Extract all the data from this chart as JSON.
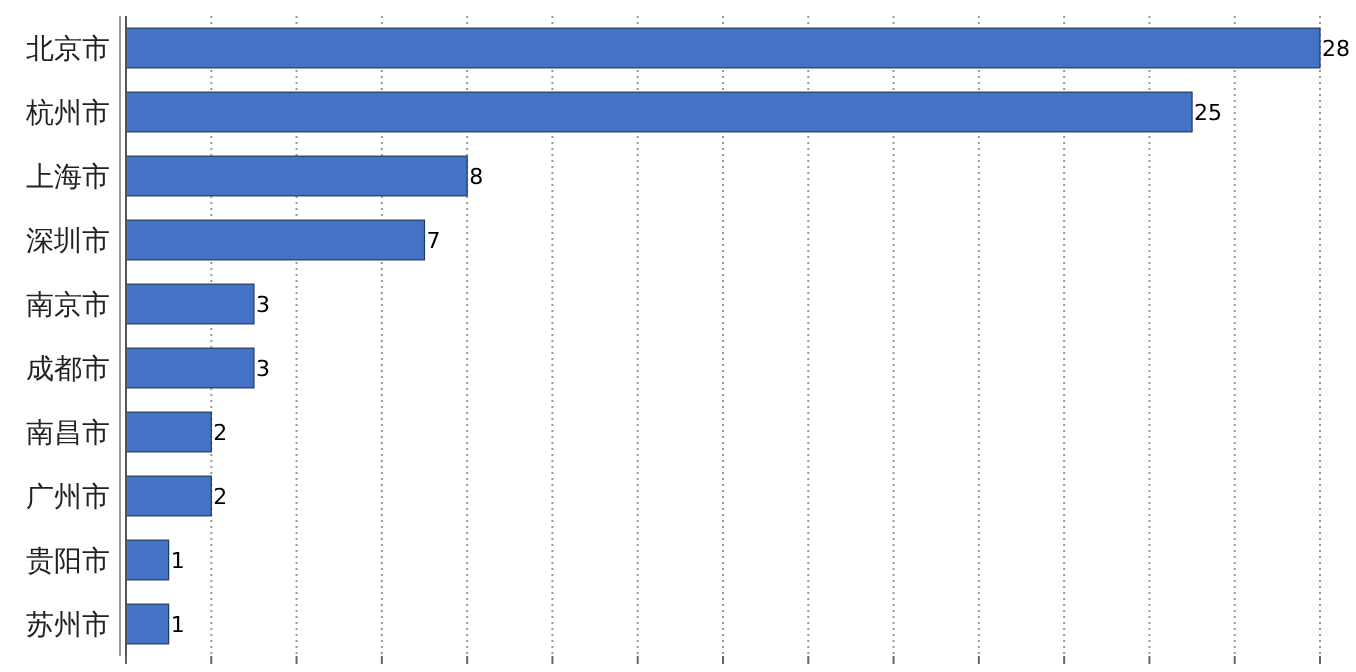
{
  "chart_data": {
    "type": "bar",
    "orientation": "horizontal",
    "categories": [
      "北京市",
      "杭州市",
      "上海市",
      "深圳市",
      "南京市",
      "成都市",
      "南昌市",
      "广州市",
      "贵阳市",
      "苏州市"
    ],
    "values": [
      28,
      25,
      8,
      7,
      3,
      3,
      2,
      2,
      1,
      1
    ],
    "color": "#4472c4",
    "data_labels": true,
    "xlim": [
      0,
      28
    ],
    "xticks": [
      {
        "value": 0,
        "label": null
      },
      {
        "value": 2,
        "label": null
      },
      {
        "value": 4,
        "label": null
      },
      {
        "value": 6,
        "label": null
      },
      {
        "value": 8,
        "label": null
      },
      {
        "value": 10,
        "label": null
      },
      {
        "value": 12,
        "label": null
      },
      {
        "value": 14,
        "label": null
      },
      {
        "value": 16,
        "label": null
      },
      {
        "value": 18,
        "label": null
      },
      {
        "value": 20,
        "label": null
      },
      {
        "value": 22,
        "label": null
      },
      {
        "value": 24,
        "label": null
      },
      {
        "value": 26,
        "label": null
      },
      {
        "value": 28,
        "label": null
      }
    ],
    "grid": "x"
  }
}
